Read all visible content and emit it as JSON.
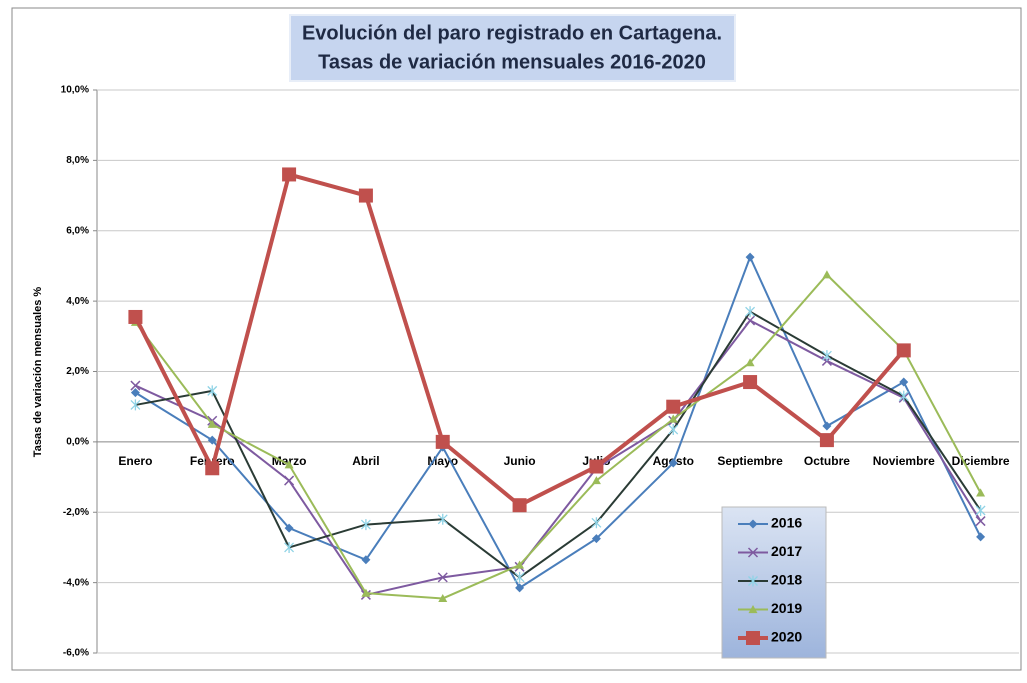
{
  "chart_data": {
    "type": "line",
    "title": "Evolución del paro registrado en Cartagena.",
    "subtitle": "Tasas de variación mensuales 2016-2020",
    "y_label": "Tasas de variación mensuales %",
    "categories": [
      "Enero",
      "Febrero",
      "Marzo",
      "Abril",
      "Mayo",
      "Junio",
      "Julio",
      "Agosto",
      "Septiembre",
      "Octubre",
      "Noviembre",
      "Diciembre"
    ],
    "series": [
      {
        "name": "2016",
        "color": "#4a7ebb",
        "marker": "diamond",
        "values": [
          1.4,
          0.05,
          -2.45,
          -3.35,
          -0.15,
          -4.15,
          -2.75,
          -0.6,
          5.25,
          0.45,
          1.7,
          -2.7
        ]
      },
      {
        "name": "2017",
        "color": "#7e5aa0",
        "marker": "x",
        "values": [
          1.6,
          0.6,
          -1.1,
          -4.35,
          -3.85,
          -3.55,
          -0.75,
          0.6,
          3.45,
          2.3,
          1.25,
          -2.25
        ]
      },
      {
        "name": "2018",
        "color": "#2a3b35",
        "marker": "star",
        "values": [
          1.05,
          1.45,
          -3.0,
          -2.35,
          -2.2,
          -3.85,
          -2.3,
          0.35,
          3.7,
          2.45,
          1.3,
          -1.95
        ]
      },
      {
        "name": "2019",
        "color": "#9bbb59",
        "marker": "triangle",
        "values": [
          3.4,
          0.5,
          -0.65,
          -4.3,
          -4.45,
          -3.5,
          -1.1,
          0.65,
          2.25,
          4.75,
          2.6,
          -1.45
        ]
      },
      {
        "name": "2020",
        "color": "#c0504d",
        "marker": "square",
        "values": [
          3.55,
          -0.75,
          7.6,
          7.0,
          0,
          -1.8,
          -0.7,
          1.0,
          1.7,
          0.05,
          2.6,
          null
        ]
      }
    ],
    "ylim": [
      -6,
      10
    ],
    "yticks": [
      {
        "value": -6,
        "label": "-6,0%"
      },
      {
        "value": -4,
        "label": "-4,0%"
      },
      {
        "value": -2,
        "label": "-2,0%"
      },
      {
        "value": 0,
        "label": "0,0%"
      },
      {
        "value": 2,
        "label": "2,0%"
      },
      {
        "value": 4,
        "label": "4,0%"
      },
      {
        "value": 6,
        "label": "6,0%"
      },
      {
        "value": 8,
        "label": "8,0%"
      },
      {
        "value": 10,
        "label": "10,0%"
      }
    ],
    "grid": true
  }
}
